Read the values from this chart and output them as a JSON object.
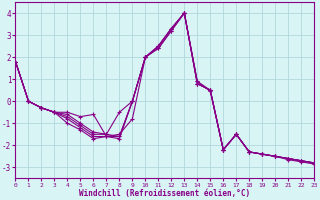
{
  "xlabel": "Windchill (Refroidissement éolien,°C)",
  "bg_color": "#d8f4f4",
  "grid_color": "#b0d8dc",
  "line_color": "#880088",
  "xlim": [
    0,
    23
  ],
  "ylim": [
    -3.5,
    4.5
  ],
  "yticks": [
    -3,
    -2,
    -1,
    0,
    1,
    2,
    3,
    4
  ],
  "xticks": [
    0,
    1,
    2,
    3,
    4,
    5,
    6,
    7,
    8,
    9,
    10,
    11,
    12,
    13,
    14,
    15,
    16,
    17,
    18,
    19,
    20,
    21,
    22,
    23
  ],
  "series": [
    {
      "x": [
        0,
        1,
        2,
        3,
        4,
        5,
        6,
        7,
        8,
        9,
        10,
        11,
        12,
        13,
        14,
        15,
        16,
        17,
        18,
        19,
        20,
        21,
        22,
        23
      ],
      "y": [
        1.8,
        0.0,
        -0.3,
        -0.5,
        -0.5,
        -0.7,
        -0.6,
        -1.6,
        -1.6,
        0.0,
        2.0,
        2.5,
        3.3,
        4.0,
        0.8,
        0.5,
        -2.2,
        -1.5,
        -2.3,
        -2.4,
        -2.5,
        -2.6,
        -2.7,
        -2.8
      ]
    },
    {
      "x": [
        0,
        1,
        2,
        3,
        4,
        5,
        6,
        7,
        8,
        9,
        10,
        11,
        12,
        13,
        14,
        15,
        16,
        17,
        18,
        19,
        20,
        21,
        22,
        23
      ],
      "y": [
        1.8,
        0.0,
        -0.3,
        -0.5,
        -0.7,
        -1.1,
        -1.5,
        -1.5,
        -1.6,
        0.0,
        2.0,
        2.5,
        3.3,
        4.0,
        0.8,
        0.5,
        -2.2,
        -1.5,
        -2.3,
        -2.4,
        -2.5,
        -2.6,
        -2.7,
        -2.8
      ]
    },
    {
      "x": [
        0,
        1,
        2,
        3,
        4,
        5,
        6,
        7,
        8,
        9,
        10,
        11,
        12,
        13,
        14,
        15,
        16,
        17,
        18,
        19,
        20,
        21,
        22,
        23
      ],
      "y": [
        1.8,
        0.0,
        -0.3,
        -0.5,
        -0.8,
        -1.2,
        -1.6,
        -1.6,
        -1.7,
        0.0,
        2.0,
        2.4,
        3.2,
        4.0,
        0.8,
        0.5,
        -2.2,
        -1.5,
        -2.3,
        -2.4,
        -2.5,
        -2.6,
        -2.7,
        -2.8
      ]
    },
    {
      "x": [
        0,
        1,
        2,
        3,
        4,
        5,
        6,
        7,
        8,
        9,
        10,
        11,
        12,
        13,
        14,
        15,
        16,
        17,
        18,
        19,
        20,
        21,
        22,
        23
      ],
      "y": [
        1.8,
        0.0,
        -0.3,
        -0.5,
        -0.6,
        -1.0,
        -1.4,
        -1.5,
        -0.5,
        0.0,
        2.0,
        2.5,
        3.3,
        4.0,
        0.9,
        0.45,
        -2.2,
        -1.5,
        -2.3,
        -2.4,
        -2.5,
        -2.6,
        -2.7,
        -2.8
      ]
    },
    {
      "x": [
        0,
        1,
        2,
        3,
        4,
        5,
        6,
        7,
        8,
        9,
        10,
        11,
        12,
        13,
        14,
        15,
        16,
        17,
        18,
        19,
        20,
        21,
        22,
        23
      ],
      "y": [
        1.8,
        0.0,
        -0.3,
        -0.5,
        -1.0,
        -1.3,
        -1.7,
        -1.6,
        -1.5,
        -0.8,
        2.0,
        2.4,
        3.2,
        4.0,
        0.9,
        0.5,
        -2.2,
        -1.5,
        -2.3,
        -2.4,
        -2.5,
        -2.65,
        -2.75,
        -2.85
      ]
    }
  ]
}
